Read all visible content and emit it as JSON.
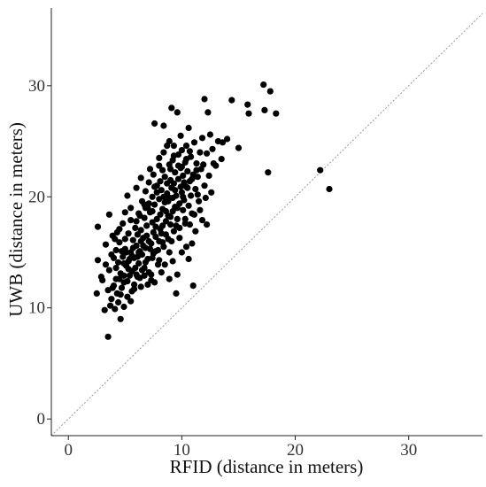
{
  "chart_data": {
    "type": "scatter",
    "title": "",
    "xlabel": "RFID (distance in meters)",
    "ylabel": "UWB (distance in meters)",
    "xlim": [
      -1.5,
      36.5
    ],
    "ylim": [
      -1.5,
      37
    ],
    "xticks": [
      0,
      10,
      20,
      30
    ],
    "yticks": [
      0,
      10,
      20,
      30
    ],
    "grid": false,
    "reference_line": "y = x (dotted)",
    "colors": {
      "points": "#000000",
      "axis": "#222222",
      "reference_line": "#999999"
    },
    "series": [
      {
        "points": [
          [
            2.5,
            11.3
          ],
          [
            2.6,
            14.3
          ],
          [
            2.6,
            17.3
          ],
          [
            2.9,
            12.8
          ],
          [
            3.2,
            9.8
          ],
          [
            3.3,
            15.7
          ],
          [
            3.5,
            7.4
          ],
          [
            3.5,
            11.6
          ],
          [
            3.6,
            13.4
          ],
          [
            3.6,
            18.4
          ],
          [
            3.7,
            10.2
          ],
          [
            3.8,
            14.8
          ],
          [
            3.9,
            16.5
          ],
          [
            4.0,
            12.0
          ],
          [
            4.1,
            9.9
          ],
          [
            4.2,
            13.6
          ],
          [
            4.2,
            15.2
          ],
          [
            4.3,
            11.3
          ],
          [
            4.3,
            16.8
          ],
          [
            4.4,
            10.5
          ],
          [
            4.4,
            14.1
          ],
          [
            4.5,
            12.6
          ],
          [
            4.5,
            15.9
          ],
          [
            4.6,
            9.0
          ],
          [
            4.6,
            13.1
          ],
          [
            4.7,
            11.8
          ],
          [
            4.8,
            14.6
          ],
          [
            4.8,
            17.6
          ],
          [
            4.9,
            10.1
          ],
          [
            4.9,
            12.3
          ],
          [
            5.0,
            15.3
          ],
          [
            5.0,
            16.2
          ],
          [
            5.1,
            13.8
          ],
          [
            5.2,
            11.0
          ],
          [
            5.2,
            20.1
          ],
          [
            5.3,
            14.2
          ],
          [
            5.3,
            16.7
          ],
          [
            5.4,
            12.9
          ],
          [
            5.5,
            15.0
          ],
          [
            5.5,
            17.9
          ],
          [
            5.6,
            13.3
          ],
          [
            5.6,
            11.5
          ],
          [
            5.7,
            16.1
          ],
          [
            5.8,
            14.5
          ],
          [
            5.8,
            12.1
          ],
          [
            5.9,
            17.2
          ],
          [
            6.0,
            15.6
          ],
          [
            6.0,
            13.0
          ],
          [
            6.1,
            16.6
          ],
          [
            6.2,
            14.0
          ],
          [
            6.2,
            18.5
          ],
          [
            6.3,
            15.1
          ],
          [
            6.3,
            12.7
          ],
          [
            6.4,
            17.0
          ],
          [
            6.5,
            19.6
          ],
          [
            6.5,
            14.8
          ],
          [
            6.6,
            16.3
          ],
          [
            6.7,
            13.6
          ],
          [
            6.7,
            18.1
          ],
          [
            6.8,
            15.4
          ],
          [
            6.8,
            20.5
          ],
          [
            6.9,
            17.4
          ],
          [
            7.0,
            14.4
          ],
          [
            7.0,
            19.0
          ],
          [
            7.1,
            16.0
          ],
          [
            7.1,
            21.3
          ],
          [
            7.2,
            18.6
          ],
          [
            7.3,
            15.8
          ],
          [
            7.3,
            12.5
          ],
          [
            7.4,
            20.0
          ],
          [
            7.4,
            17.7
          ],
          [
            7.5,
            14.9
          ],
          [
            7.5,
            22.0
          ],
          [
            7.6,
            19.3
          ],
          [
            7.6,
            26.6
          ],
          [
            7.7,
            16.4
          ],
          [
            7.8,
            18.0
          ],
          [
            7.8,
            21.0
          ],
          [
            7.9,
            15.2
          ],
          [
            7.9,
            13.9
          ],
          [
            8.0,
            19.8
          ],
          [
            8.0,
            23.5
          ],
          [
            8.1,
            17.1
          ],
          [
            8.2,
            20.6
          ],
          [
            8.2,
            16.7
          ],
          [
            8.3,
            18.9
          ],
          [
            8.3,
            22.4
          ],
          [
            8.4,
            26.4
          ],
          [
            8.4,
            15.5
          ],
          [
            8.5,
            19.5
          ],
          [
            8.5,
            21.8
          ],
          [
            8.6,
            17.8
          ],
          [
            8.7,
            20.3
          ],
          [
            8.7,
            24.6
          ],
          [
            8.8,
            18.3
          ],
          [
            8.8,
            16.2
          ],
          [
            8.9,
            22.9
          ],
          [
            8.9,
            19.9
          ],
          [
            9.0,
            21.5
          ],
          [
            9.0,
            17.5
          ],
          [
            9.1,
            28.0
          ],
          [
            9.1,
            20.8
          ],
          [
            9.2,
            23.3
          ],
          [
            9.2,
            18.7
          ],
          [
            9.3,
            16.9
          ],
          [
            9.3,
            21.2
          ],
          [
            9.4,
            19.1
          ],
          [
            9.4,
            22.2
          ],
          [
            9.5,
            11.3
          ],
          [
            9.5,
            20.1
          ],
          [
            9.6,
            27.6
          ],
          [
            9.6,
            18.0
          ],
          [
            9.7,
            23.8
          ],
          [
            9.7,
            21.6
          ],
          [
            9.8,
            19.4
          ],
          [
            9.8,
            17.2
          ],
          [
            9.9,
            22.6
          ],
          [
            10.0,
            20.4
          ],
          [
            10.0,
            24.2
          ],
          [
            10.1,
            18.8
          ],
          [
            10.1,
            21.9
          ],
          [
            10.2,
            19.7
          ],
          [
            10.3,
            23.1
          ],
          [
            10.3,
            17.6
          ],
          [
            10.4,
            20.9
          ],
          [
            10.4,
            24.6
          ],
          [
            10.5,
            22.3
          ],
          [
            10.6,
            19.2
          ],
          [
            10.6,
            14.4
          ],
          [
            10.7,
            21.4
          ],
          [
            10.8,
            23.6
          ],
          [
            10.8,
            20.1
          ],
          [
            10.9,
            18.5
          ],
          [
            11.0,
            12.0
          ],
          [
            11.0,
            22.0
          ],
          [
            11.1,
            24.9
          ],
          [
            11.2,
            20.7
          ],
          [
            11.3,
            23.0
          ],
          [
            11.4,
            21.8
          ],
          [
            11.5,
            19.6
          ],
          [
            11.6,
            24.0
          ],
          [
            11.7,
            22.5
          ],
          [
            11.8,
            25.3
          ],
          [
            12.0,
            28.8
          ],
          [
            12.0,
            21.0
          ],
          [
            12.2,
            23.9
          ],
          [
            12.3,
            27.6
          ],
          [
            12.5,
            25.6
          ],
          [
            12.6,
            20.4
          ],
          [
            12.7,
            24.3
          ],
          [
            13.0,
            22.8
          ],
          [
            13.2,
            25.0
          ],
          [
            13.5,
            23.4
          ],
          [
            13.6,
            24.9
          ],
          [
            14.0,
            25.2
          ],
          [
            14.4,
            28.7
          ],
          [
            15.0,
            24.4
          ],
          [
            15.8,
            28.3
          ],
          [
            15.9,
            27.5
          ],
          [
            17.2,
            30.1
          ],
          [
            17.3,
            27.8
          ],
          [
            17.6,
            22.2
          ],
          [
            17.8,
            29.5
          ],
          [
            18.3,
            27.5
          ],
          [
            22.2,
            22.4
          ],
          [
            23.0,
            20.7
          ],
          [
            5.1,
            15.0
          ],
          [
            5.4,
            14.4
          ],
          [
            5.7,
            15.4
          ],
          [
            6.1,
            14.6
          ],
          [
            6.4,
            16.0
          ],
          [
            6.6,
            15.6
          ],
          [
            6.9,
            16.5
          ],
          [
            7.2,
            15.3
          ],
          [
            7.5,
            16.8
          ],
          [
            7.7,
            17.3
          ],
          [
            8.0,
            16.0
          ],
          [
            8.1,
            18.4
          ],
          [
            8.3,
            17.4
          ],
          [
            8.6,
            18.7
          ],
          [
            8.8,
            19.6
          ],
          [
            9.0,
            18.2
          ],
          [
            9.2,
            19.9
          ],
          [
            9.4,
            20.6
          ],
          [
            9.6,
            19.0
          ],
          [
            9.9,
            20.9
          ],
          [
            10.1,
            20.0
          ],
          [
            10.2,
            21.3
          ],
          [
            10.5,
            20.8
          ],
          [
            10.9,
            21.6
          ],
          [
            11.3,
            22.4
          ],
          [
            6.0,
            17.8
          ],
          [
            6.3,
            18.3
          ],
          [
            6.8,
            19.0
          ],
          [
            7.1,
            19.4
          ],
          [
            7.4,
            18.7
          ],
          [
            7.8,
            20.4
          ],
          [
            8.1,
            21.4
          ],
          [
            8.4,
            20.0
          ],
          [
            8.7,
            21.2
          ],
          [
            9.0,
            22.5
          ],
          [
            9.3,
            23.7
          ],
          [
            9.7,
            22.8
          ],
          [
            10.0,
            22.7
          ],
          [
            10.4,
            23.4
          ],
          [
            10.7,
            24.1
          ],
          [
            4.9,
            14.0
          ],
          [
            5.3,
            13.5
          ],
          [
            5.6,
            14.7
          ],
          [
            5.9,
            13.6
          ],
          [
            6.2,
            15.0
          ],
          [
            6.5,
            13.4
          ],
          [
            6.8,
            14.1
          ],
          [
            7.1,
            13.2
          ],
          [
            7.4,
            14.5
          ],
          [
            7.7,
            15.1
          ],
          [
            8.0,
            14.3
          ],
          [
            8.3,
            15.9
          ],
          [
            8.6,
            16.6
          ],
          [
            8.9,
            15.0
          ],
          [
            9.1,
            16.0
          ],
          [
            9.5,
            17.4
          ],
          [
            9.8,
            16.3
          ],
          [
            10.3,
            18.0
          ],
          [
            10.7,
            17.5
          ],
          [
            11.1,
            18.4
          ],
          [
            3.9,
            11.8
          ],
          [
            4.2,
            12.6
          ],
          [
            4.6,
            11.2
          ],
          [
            4.9,
            12.9
          ],
          [
            5.2,
            12.4
          ],
          [
            5.5,
            10.6
          ],
          [
            5.8,
            11.7
          ],
          [
            6.1,
            12.8
          ],
          [
            6.4,
            11.9
          ],
          [
            6.7,
            12.9
          ],
          [
            7.0,
            12.1
          ],
          [
            7.3,
            13.0
          ],
          [
            7.6,
            12.3
          ],
          [
            8.2,
            13.2
          ],
          [
            8.5,
            13.9
          ],
          [
            8.9,
            12.6
          ],
          [
            9.2,
            14.2
          ],
          [
            9.6,
            13.0
          ],
          [
            10.0,
            15.0
          ],
          [
            10.4,
            15.5
          ],
          [
            3.0,
            12.5
          ],
          [
            3.3,
            13.9
          ],
          [
            3.8,
            10.8
          ],
          [
            4.0,
            14.5
          ],
          [
            4.1,
            16.2
          ],
          [
            4.5,
            17.1
          ],
          [
            4.7,
            15.1
          ],
          [
            5.0,
            18.6
          ],
          [
            5.5,
            19.0
          ],
          [
            6.0,
            20.8
          ],
          [
            6.4,
            21.7
          ],
          [
            6.7,
            19.3
          ],
          [
            7.2,
            22.5
          ],
          [
            7.6,
            20.9
          ],
          [
            8.0,
            22.8
          ],
          [
            8.4,
            24.0
          ],
          [
            8.9,
            25.0
          ],
          [
            9.3,
            24.6
          ],
          [
            9.9,
            25.5
          ],
          [
            10.6,
            26.2
          ],
          [
            11.4,
            20.2
          ],
          [
            11.9,
            22.9
          ],
          [
            12.1,
            19.9
          ],
          [
            12.4,
            21.9
          ],
          [
            12.8,
            23.0
          ],
          [
            11.2,
            16.9
          ],
          [
            11.6,
            18.8
          ],
          [
            12.2,
            17.5
          ],
          [
            10.9,
            15.8
          ],
          [
            11.8,
            17.9
          ]
        ]
      }
    ]
  }
}
